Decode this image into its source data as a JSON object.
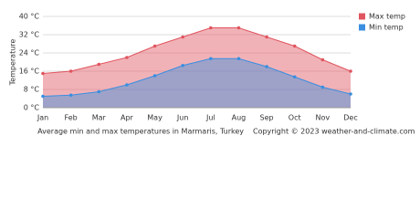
{
  "chart_data": {
    "type": "area",
    "y_label": "Temperature",
    "caption": "Average min and max temperatures in Marmaris, Turkey",
    "copyright": "Copyright © 2023  weather-and-climate.com",
    "categories": [
      "Jan",
      "Feb",
      "Mar",
      "Apr",
      "May",
      "Jun",
      "Jul",
      "Aug",
      "Sep",
      "Oct",
      "Nov",
      "Dec"
    ],
    "series": [
      {
        "name": "Max temp",
        "color": "#e0555f",
        "values": [
          15,
          16,
          19,
          22,
          27,
          31,
          35,
          35,
          31,
          27,
          21,
          16
        ]
      },
      {
        "name": "Min temp",
        "color": "#3a8ee0",
        "values": [
          5,
          5.5,
          7,
          10,
          14,
          18.5,
          21.5,
          21.5,
          18,
          13.5,
          9,
          6
        ]
      }
    ],
    "ylim": [
      0,
      40
    ],
    "yticks": [
      {
        "value": 0,
        "label": "0 °C"
      },
      {
        "value": 8,
        "label": "8 °C"
      },
      {
        "value": 16,
        "label": "16 °C"
      },
      {
        "value": 24,
        "label": "24 °C"
      },
      {
        "value": 32,
        "label": "32 °C"
      },
      {
        "value": 40,
        "label": "40 °C"
      }
    ],
    "grid": true,
    "legend": "top-right"
  }
}
